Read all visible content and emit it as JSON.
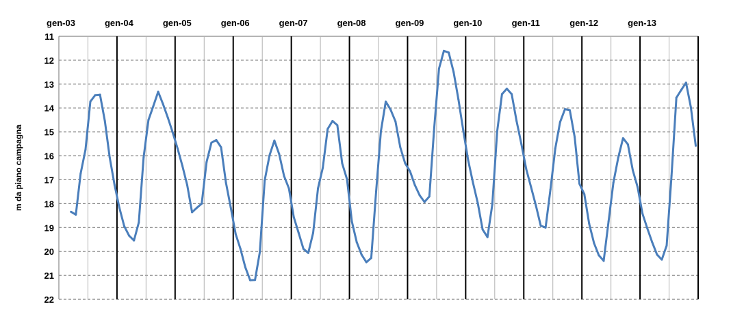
{
  "chart_data": {
    "type": "line",
    "title": "",
    "xlabel": "",
    "ylabel": "m da piano campagna",
    "y_inverted": true,
    "ylim": [
      11,
      22
    ],
    "yticks": [
      11,
      12,
      13,
      14,
      15,
      16,
      17,
      18,
      19,
      20,
      21,
      22
    ],
    "xtick_labels": [
      "gen-03",
      "gen-04",
      "gen-05",
      "gen-06",
      "gen-07",
      "gen-08",
      "gen-09",
      "gen-10",
      "gen-11",
      "gen-12",
      "gen-13"
    ],
    "xtick_position": "top",
    "xlim": [
      "2003-01",
      "2014-01"
    ],
    "grid": {
      "horizontal": "dashed",
      "vertical_yearly": "solid-black",
      "vertical_midyear": "solid-gray"
    },
    "line_color": "#4a7ebb",
    "series": [
      {
        "x": [
          "2003-03",
          "2003-04",
          "2003-05",
          "2003-06",
          "2003-07",
          "2003-08",
          "2003-09",
          "2003-10",
          "2003-11",
          "2003-12",
          "2004-01",
          "2004-02",
          "2004-03",
          "2004-04",
          "2004-05",
          "2004-06",
          "2004-07",
          "2004-08",
          "2004-09",
          "2004-10",
          "2004-11",
          "2004-12",
          "2005-01",
          "2005-02",
          "2005-03",
          "2005-04",
          "2005-05",
          "2005-06",
          "2005-07",
          "2005-08",
          "2005-09",
          "2005-10",
          "2005-11",
          "2005-12",
          "2006-01",
          "2006-02",
          "2006-03",
          "2006-04",
          "2006-05",
          "2006-06",
          "2006-07",
          "2006-08",
          "2006-09",
          "2006-10",
          "2006-11",
          "2006-12",
          "2007-01",
          "2007-02",
          "2007-03",
          "2007-04",
          "2007-05",
          "2007-06",
          "2007-07",
          "2007-08",
          "2007-09",
          "2007-10",
          "2007-11",
          "2007-12",
          "2008-01",
          "2008-02",
          "2008-03",
          "2008-04",
          "2008-05",
          "2008-06",
          "2008-07",
          "2008-08",
          "2008-09",
          "2008-10",
          "2008-11",
          "2008-12",
          "2009-01",
          "2009-02",
          "2009-03",
          "2009-04",
          "2009-05",
          "2009-06",
          "2009-07",
          "2009-08",
          "2009-09",
          "2009-10",
          "2009-11",
          "2009-12",
          "2010-01",
          "2010-02",
          "2010-03",
          "2010-04",
          "2010-05",
          "2010-06",
          "2010-07",
          "2010-08",
          "2010-09",
          "2010-10",
          "2010-11",
          "2010-12",
          "2011-01",
          "2011-02",
          "2011-03",
          "2011-04",
          "2011-05",
          "2011-06",
          "2011-07",
          "2011-08",
          "2011-09",
          "2011-10",
          "2011-11",
          "2011-12",
          "2012-01",
          "2012-02",
          "2012-03",
          "2012-04",
          "2012-05",
          "2012-06",
          "2012-07",
          "2012-08",
          "2012-09",
          "2012-10",
          "2012-11",
          "2012-12",
          "2013-01",
          "2013-02",
          "2013-03",
          "2013-04",
          "2013-05",
          "2013-06",
          "2013-07",
          "2013-08",
          "2013-09",
          "2013-10",
          "2013-11",
          "2013-12"
        ],
        "y": [
          18.34,
          18.46,
          16.74,
          15.74,
          13.73,
          13.46,
          13.44,
          14.54,
          16.07,
          17.22,
          18.17,
          18.94,
          19.34,
          19.54,
          18.79,
          16.07,
          14.5,
          13.92,
          13.32,
          13.83,
          14.4,
          15.02,
          15.69,
          16.41,
          17.22,
          18.36,
          18.17,
          18.0,
          16.26,
          15.45,
          15.34,
          15.64,
          17.12,
          18.17,
          19.27,
          19.89,
          20.66,
          21.2,
          21.19,
          20.03,
          17.03,
          15.98,
          15.36,
          15.93,
          16.84,
          17.36,
          18.56,
          19.22,
          19.89,
          20.06,
          19.22,
          17.36,
          16.5,
          14.88,
          14.54,
          14.72,
          16.31,
          16.98,
          18.75,
          19.61,
          20.13,
          20.45,
          20.27,
          17.5,
          14.97,
          13.73,
          14.07,
          14.56,
          15.64,
          16.31,
          16.64,
          17.22,
          17.65,
          17.93,
          17.7,
          14.83,
          12.35,
          11.61,
          11.68,
          12.49,
          13.64,
          14.93,
          16.17,
          17.12,
          17.98,
          19.08,
          19.4,
          18.03,
          14.97,
          13.42,
          13.19,
          13.42,
          14.54,
          15.5,
          16.55,
          17.31,
          18.08,
          18.92,
          19.0,
          17.41,
          15.69,
          14.59,
          14.05,
          14.09,
          15.21,
          17.17,
          17.6,
          18.84,
          19.65,
          20.16,
          20.39,
          18.75,
          17.12,
          16.07,
          15.26,
          15.52,
          16.6,
          17.31,
          18.41,
          19.03,
          19.61,
          20.13,
          20.34,
          19.75,
          16.84,
          13.57,
          13.25,
          12.94,
          13.97,
          15.58
        ]
      }
    ]
  }
}
